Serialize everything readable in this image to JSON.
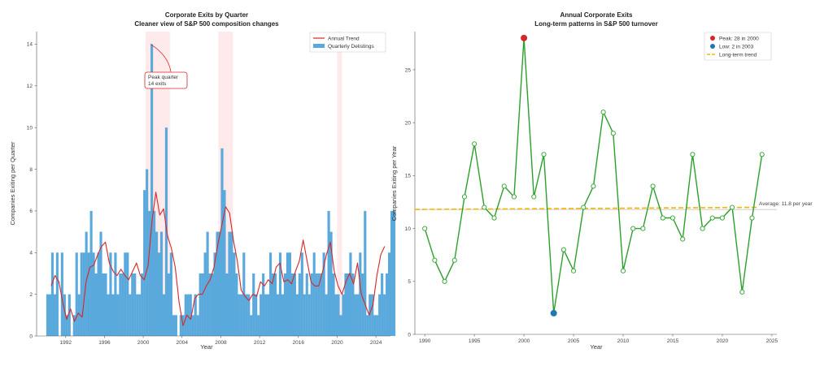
{
  "chart_data": [
    {
      "type": "bar",
      "title": "Corporate Exits by Quarter",
      "subtitle": "Cleaner view of S&P 500 composition changes",
      "xlabel": "Year",
      "ylabel": "Companies Exiting per Quarter",
      "xlim": [
        1989,
        2025.5
      ],
      "ylim": [
        0,
        14.6
      ],
      "xticks": [
        1992,
        1996,
        2000,
        2004,
        2008,
        2012,
        2016,
        2020,
        2024
      ],
      "yticks": [
        0,
        2,
        4,
        6,
        8,
        10,
        12,
        14
      ],
      "shaded_periods": [
        [
          2000.25,
          2002.75
        ],
        [
          2007.75,
          2009.25
        ],
        [
          2020.0,
          2020.5
        ]
      ],
      "legend": [
        "Annual Trend",
        "Quarterly Delistings"
      ],
      "legend_position": "upper right",
      "bar_series_name": "Quarterly Delistings",
      "bar_start_year": 1990,
      "bar_color": "#5aa9dc",
      "quarterly_values": [
        2,
        2,
        4,
        2,
        4,
        0,
        4,
        2,
        1,
        2,
        0,
        1,
        4,
        2,
        4,
        4,
        5,
        4,
        6,
        4,
        3,
        4,
        5,
        3,
        3,
        2,
        4,
        2,
        4,
        2,
        3,
        3,
        4,
        4,
        2,
        3,
        3,
        2,
        2,
        3,
        7,
        8,
        6,
        14,
        6,
        5,
        4,
        5,
        2,
        10,
        3,
        4,
        1,
        1,
        0,
        1,
        1,
        2,
        2,
        2,
        1,
        2,
        1,
        3,
        3,
        4,
        5,
        3,
        3,
        4,
        5,
        5,
        9,
        7,
        3,
        5,
        5,
        4,
        3,
        2,
        2,
        4,
        2,
        2,
        1,
        3,
        2,
        1,
        2,
        3,
        2,
        2,
        4,
        3,
        3,
        2,
        4,
        2,
        3,
        4,
        4,
        3,
        3,
        2,
        3,
        4,
        2,
        3,
        2,
        3,
        4,
        3,
        3,
        3,
        4,
        2,
        6,
        5,
        3,
        2,
        2,
        1,
        2,
        3,
        3,
        4,
        3,
        2,
        2,
        4,
        3,
        6,
        1,
        2,
        2,
        1,
        1,
        2,
        3,
        2,
        3,
        4,
        6,
        6
      ],
      "trend_series_name": "Annual Trend",
      "trend_color": "#d62728",
      "trend_x": [
        1990.5,
        1990.9,
        1991.3,
        1991.7,
        1992.1,
        1992.5,
        1992.9,
        1993.3,
        1993.7,
        1994.1,
        1994.5,
        1994.9,
        1995.3,
        1995.7,
        1996.1,
        1996.5,
        1996.9,
        1997.3,
        1997.7,
        1998.1,
        1998.5,
        1998.9,
        1999.3,
        1999.7,
        2000.1,
        2000.5,
        2000.9,
        2001.3,
        2001.7,
        2002.1,
        2002.5,
        2002.9,
        2003.3,
        2003.7,
        2004.1,
        2004.5,
        2004.9,
        2005.3,
        2005.7,
        2006.1,
        2006.5,
        2006.9,
        2007.3,
        2007.7,
        2008.1,
        2008.5,
        2008.9,
        2009.3,
        2009.7,
        2010.1,
        2010.5,
        2010.9,
        2011.3,
        2011.7,
        2012.1,
        2012.5,
        2012.9,
        2013.3,
        2013.7,
        2014.1,
        2014.5,
        2014.9,
        2015.3,
        2015.7,
        2016.1,
        2016.5,
        2016.9,
        2017.3,
        2017.7,
        2018.1,
        2018.5,
        2018.9,
        2019.3,
        2019.7,
        2020.1,
        2020.5,
        2020.9,
        2021.3,
        2021.7,
        2022.1,
        2022.5,
        2022.9,
        2023.3,
        2023.7,
        2024.1,
        2024.5,
        2024.9
      ],
      "trend_y": [
        2.4,
        2.9,
        2.6,
        1.6,
        0.8,
        1.3,
        0.7,
        1.1,
        0.9,
        2.6,
        3.3,
        3.4,
        3.9,
        4.3,
        4.5,
        3.5,
        3.1,
        2.9,
        3.2,
        2.9,
        2.7,
        3.1,
        3.5,
        2.9,
        2.7,
        3.4,
        5.5,
        6.9,
        5.8,
        6.1,
        4.8,
        4.2,
        3.3,
        1.6,
        0.5,
        1.0,
        0.8,
        1.8,
        2.0,
        2.0,
        2.4,
        2.7,
        3.3,
        4.4,
        5.3,
        6.2,
        5.9,
        4.6,
        3.6,
        2.2,
        1.9,
        1.7,
        2.0,
        1.9,
        2.6,
        2.4,
        2.7,
        2.5,
        3.3,
        3.5,
        2.6,
        2.7,
        2.5,
        3.1,
        3.6,
        4.6,
        3.6,
        2.6,
        2.4,
        2.4,
        3.1,
        3.9,
        4.5,
        3.1,
        2.4,
        2.0,
        2.6,
        3.0,
        2.5,
        3.5,
        2.0,
        1.5,
        1.0,
        1.5,
        2.9,
        3.9,
        4.3
      ],
      "annotation": {
        "lines": [
          "Peak quarter",
          "14 exits"
        ],
        "x": 2000.75,
        "y": 14
      }
    },
    {
      "type": "line",
      "title": "Annual Corporate Exits",
      "subtitle": "Long-term patterns in S&P 500 turnover",
      "xlabel": "Year",
      "ylabel": "Companies Exiting per Year",
      "xlim": [
        1989,
        2025.5
      ],
      "ylim": [
        0,
        28.6
      ],
      "xticks": [
        1990,
        1995,
        2000,
        2005,
        2010,
        2015,
        2020,
        2025
      ],
      "yticks": [
        0,
        5,
        10,
        15,
        20,
        25
      ],
      "x": [
        1990,
        1991,
        1992,
        1993,
        1994,
        1995,
        1996,
        1997,
        1998,
        1999,
        2000,
        2001,
        2002,
        2003,
        2004,
        2005,
        2006,
        2007,
        2008,
        2009,
        2010,
        2011,
        2012,
        2013,
        2014,
        2015,
        2016,
        2017,
        2018,
        2019,
        2020,
        2021,
        2022,
        2023,
        2024
      ],
      "y": [
        10,
        7,
        5,
        7,
        13,
        18,
        12,
        11,
        14,
        13,
        28,
        13,
        17,
        2,
        8,
        6,
        12,
        14,
        21,
        19,
        6,
        10,
        10,
        14,
        11,
        11,
        9,
        17,
        10,
        11,
        11,
        12,
        4,
        11,
        17
      ],
      "line_color": "#2ca02c",
      "peak": {
        "label": "Peak: 28 in 2000",
        "x": 2000,
        "y": 28,
        "color": "#d62728"
      },
      "low": {
        "label": "Low: 2 in 2003",
        "x": 2003,
        "y": 2,
        "color": "#1f77b4"
      },
      "trend": {
        "label": "Long-term trend",
        "y_start": 11.8,
        "y_end": 12.0,
        "color": "#f2b705"
      },
      "average": {
        "label": "Average: 11.8 per year",
        "value": 11.8
      },
      "legend": [
        "Peak: 28 in 2000",
        "Low: 2 in 2003",
        "Long-term trend"
      ],
      "legend_position": "upper right"
    }
  ]
}
